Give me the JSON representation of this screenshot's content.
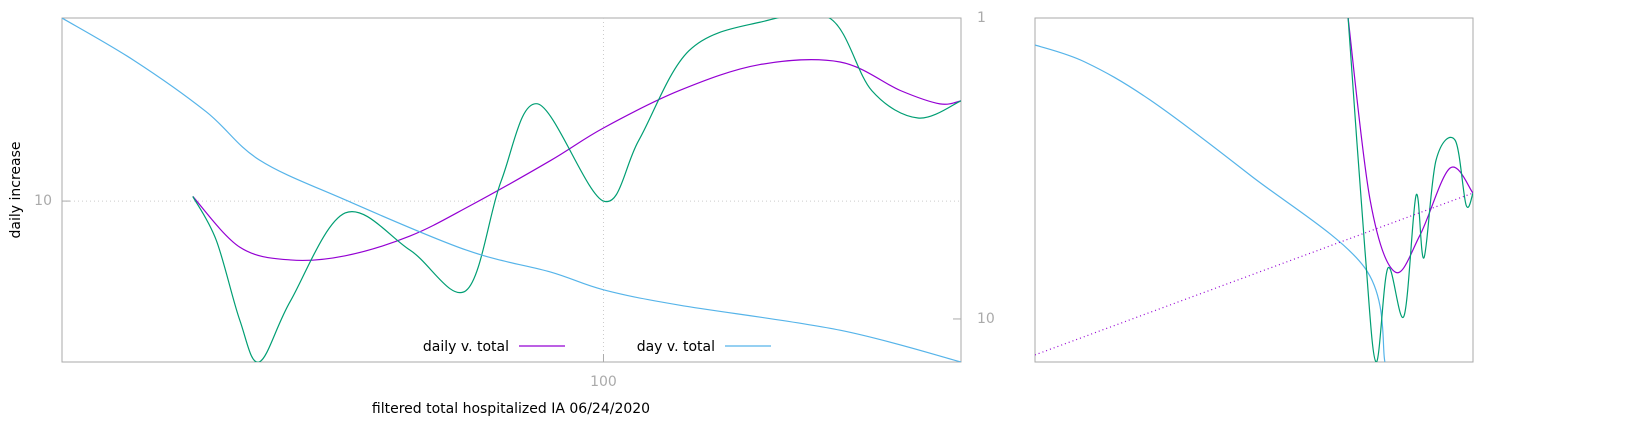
{
  "chart_data": [
    {
      "type": "line",
      "xlabel": "filtered total hospitalized IA 06/24/2020",
      "ylabel": "daily increase",
      "xlog": true,
      "ylog": true,
      "y2log": true,
      "y2reverse": true,
      "grid": true,
      "xlim": [
        35,
        200
      ],
      "ylim": [
        5,
        22
      ],
      "y2lim": [
        1,
        13.9
      ],
      "xticks": [
        100
      ],
      "yticks": [
        10
      ],
      "y2ticks": [
        1,
        10
      ],
      "series": [
        {
          "name": "daily v. total",
          "color": "#9400d3",
          "x": [
            45.1,
            49.4,
            54.5,
            60.6,
            68.7,
            77.2,
            90.2,
            100,
            115.9,
            135.4,
            158.2,
            177.8,
            192,
            200
          ],
          "values": [
            10.2,
            8.2,
            7.76,
            7.9,
            8.6,
            9.8,
            11.9,
            13.7,
            16.1,
            18.0,
            18.2,
            16.1,
            15.2,
            15.4
          ]
        },
        {
          "color": "#009e73",
          "x": [
            45.1,
            47.2,
            49.4,
            51.3,
            54.5,
            60.6,
            68.7,
            76.6,
            82.0,
            88.0,
            100,
            107.1,
            118.0,
            135.4,
            155.0,
            168.2,
            184.0,
            200
          ],
          "values": [
            10.2,
            8.45,
            5.99,
            5.0,
            6.5,
            9.5,
            8.1,
            6.8,
            10.9,
            15.2,
            10.0,
            13.0,
            19.1,
            21.6,
            22.0,
            16.1,
            14.3,
            15.4
          ]
        },
        {
          "name": "day v. total",
          "color": "#56b4e9",
          "axis": "y2",
          "x": [
            35,
            40.2,
            46.3,
            51.3,
            60.6,
            76.6,
            90.2,
            100,
            115.9,
            158.2,
            200
          ],
          "values": [
            1.0,
            1.38,
            2.05,
            2.96,
            4.02,
            5.9,
            6.98,
            8.0,
            9.0,
            10.9,
            13.9
          ]
        }
      ]
    },
    {
      "type": "line",
      "xlog": true,
      "ylog": true,
      "xlim": [
        1,
        100
      ],
      "ylim": [
        1,
        100
      ],
      "series": [
        {
          "color": "#56b4e9",
          "x": [
            1,
            1.69,
            3.35,
            9.6,
            32.1,
            39.6
          ],
          "values": [
            69.7,
            55.5,
            33.4,
            12.2,
            3.52,
            1
          ]
        },
        {
          "color": "#9400d3",
          "x": [
            26.9,
            33.9,
            44,
            57.3,
            78.5,
            100
          ],
          "values": [
            100,
            8.75,
            3.34,
            5.47,
            13.4,
            9.6
          ]
        },
        {
          "color": "#009e73",
          "x": [
            26.9,
            32.1,
            36.1,
            40.9,
            48.4,
            55,
            59.7,
            67.8,
            82.8,
            93,
            100
          ],
          "values": [
            100,
            4.48,
            1,
            3.52,
            1.85,
            9.35,
            4.03,
            14.9,
            19.5,
            8.18,
            9.6
          ]
        },
        {
          "color": "#9400d3",
          "style": "dotted",
          "x": [
            1,
            100
          ],
          "values": [
            1.1,
            9.6
          ]
        }
      ]
    }
  ]
}
